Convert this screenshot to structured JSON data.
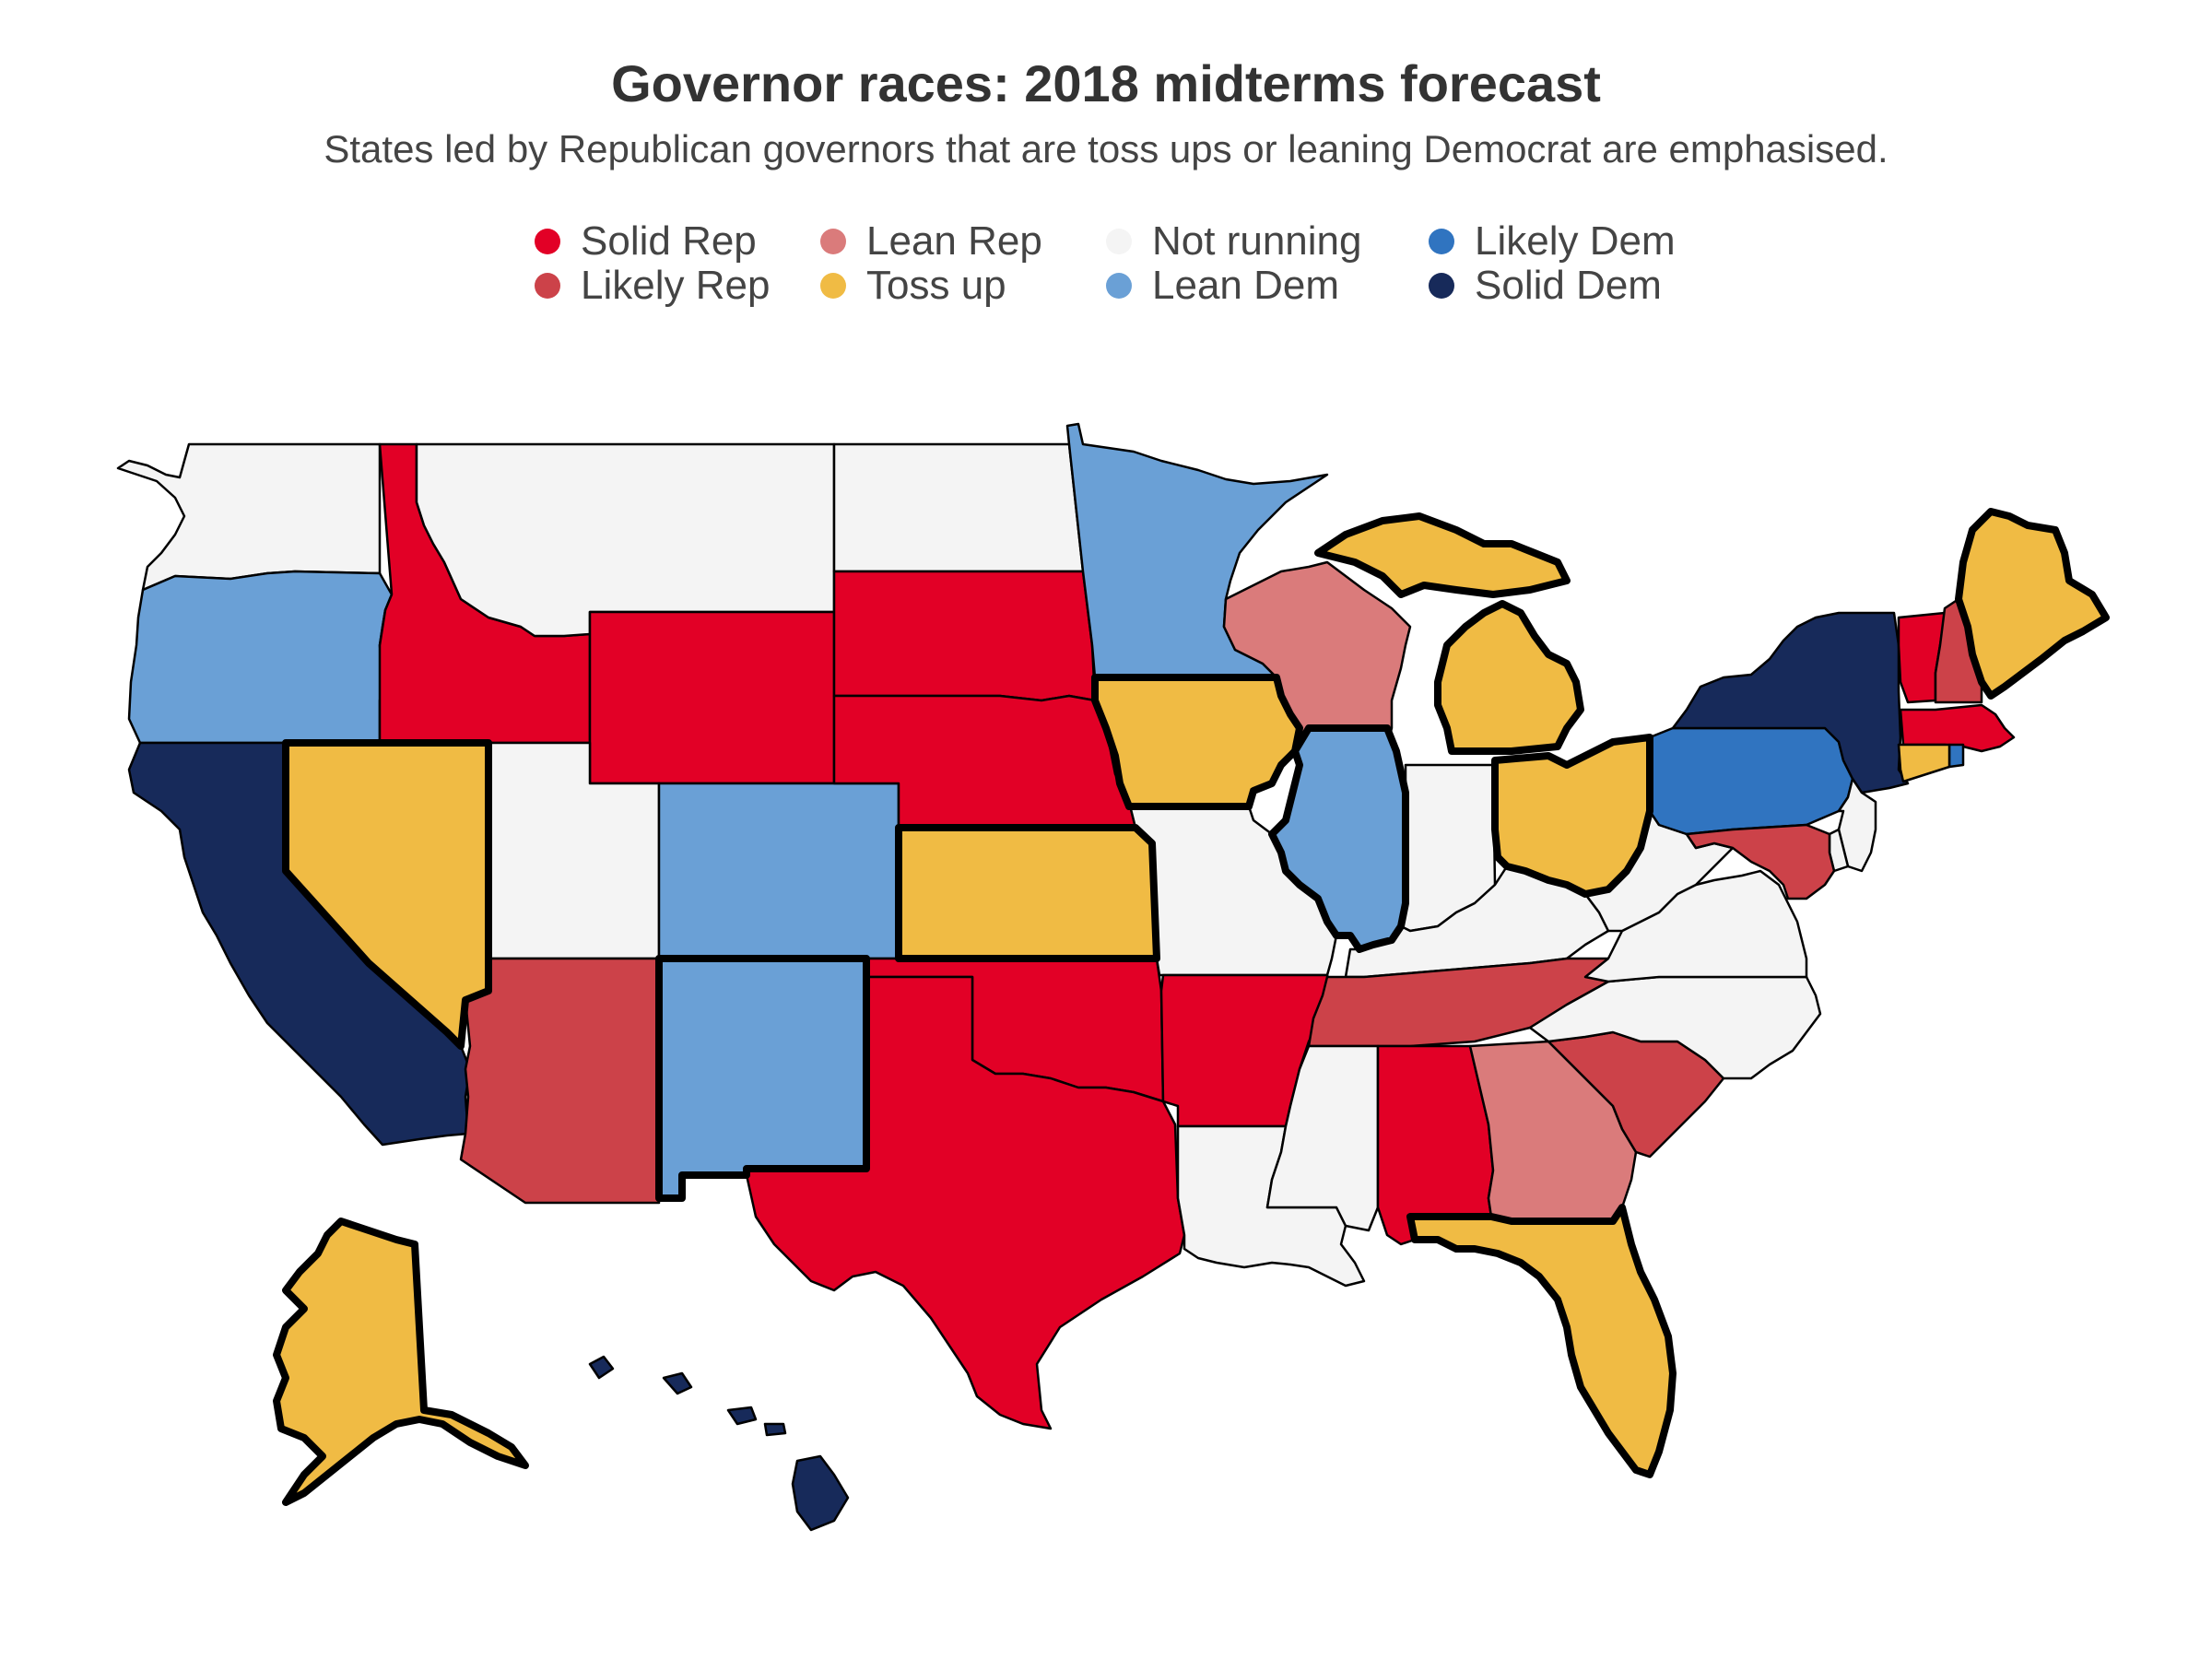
{
  "title": "Governor races: 2018 midterms forecast",
  "subtitle": "States led by Republican governors that are toss ups or leaning Democrat are emphasised.",
  "legend": [
    {
      "key": "solid_rep",
      "label": "Solid Rep",
      "color": "#e20026"
    },
    {
      "key": "likely_rep",
      "label": "Likely Rep",
      "color": "#cc4249"
    },
    {
      "key": "lean_rep",
      "label": "Lean Rep",
      "color": "#da7b7b"
    },
    {
      "key": "toss_up",
      "label": "Toss up",
      "color": "#f0bb44"
    },
    {
      "key": "not_running",
      "label": "Not running",
      "color": "#f4f4f4"
    },
    {
      "key": "lean_dem",
      "label": "Lean Dem",
      "color": "#6aa0d6"
    },
    {
      "key": "likely_dem",
      "label": "Likely Dem",
      "color": "#3074c0"
    },
    {
      "key": "solid_dem",
      "label": "Solid Dem",
      "color": "#172a5a"
    }
  ],
  "states": [
    {
      "code": "WA",
      "rating": "not_running"
    },
    {
      "code": "OR",
      "rating": "lean_dem"
    },
    {
      "code": "CA",
      "rating": "solid_dem"
    },
    {
      "code": "NV",
      "rating": "toss_up",
      "emphasised": true
    },
    {
      "code": "ID",
      "rating": "solid_rep"
    },
    {
      "code": "MT",
      "rating": "not_running"
    },
    {
      "code": "WY",
      "rating": "solid_rep"
    },
    {
      "code": "UT",
      "rating": "not_running"
    },
    {
      "code": "AZ",
      "rating": "likely_rep"
    },
    {
      "code": "CO",
      "rating": "lean_dem"
    },
    {
      "code": "NM",
      "rating": "lean_dem",
      "emphasised": true
    },
    {
      "code": "ND",
      "rating": "not_running"
    },
    {
      "code": "SD",
      "rating": "solid_rep"
    },
    {
      "code": "NE",
      "rating": "solid_rep"
    },
    {
      "code": "KS",
      "rating": "toss_up",
      "emphasised": true
    },
    {
      "code": "OK",
      "rating": "solid_rep"
    },
    {
      "code": "TX",
      "rating": "solid_rep"
    },
    {
      "code": "MN",
      "rating": "lean_dem"
    },
    {
      "code": "IA",
      "rating": "toss_up",
      "emphasised": true
    },
    {
      "code": "MO",
      "rating": "not_running"
    },
    {
      "code": "AR",
      "rating": "solid_rep"
    },
    {
      "code": "LA",
      "rating": "not_running"
    },
    {
      "code": "WI",
      "rating": "lean_rep"
    },
    {
      "code": "IL",
      "rating": "lean_dem",
      "emphasised": true
    },
    {
      "code": "MI",
      "rating": "toss_up",
      "emphasised": true
    },
    {
      "code": "IN",
      "rating": "not_running"
    },
    {
      "code": "OH",
      "rating": "toss_up",
      "emphasised": true
    },
    {
      "code": "KY",
      "rating": "not_running"
    },
    {
      "code": "TN",
      "rating": "likely_rep"
    },
    {
      "code": "MS",
      "rating": "not_running"
    },
    {
      "code": "AL",
      "rating": "solid_rep"
    },
    {
      "code": "GA",
      "rating": "lean_rep"
    },
    {
      "code": "FL",
      "rating": "toss_up",
      "emphasised": true
    },
    {
      "code": "SC",
      "rating": "likely_rep"
    },
    {
      "code": "NC",
      "rating": "not_running"
    },
    {
      "code": "VA",
      "rating": "not_running"
    },
    {
      "code": "WV",
      "rating": "not_running"
    },
    {
      "code": "PA",
      "rating": "likely_dem"
    },
    {
      "code": "NY",
      "rating": "solid_dem"
    },
    {
      "code": "VT",
      "rating": "solid_rep"
    },
    {
      "code": "NH",
      "rating": "likely_rep"
    },
    {
      "code": "ME",
      "rating": "toss_up",
      "emphasised": true
    },
    {
      "code": "MA",
      "rating": "solid_rep"
    },
    {
      "code": "RI",
      "rating": "likely_dem"
    },
    {
      "code": "CT",
      "rating": "toss_up"
    },
    {
      "code": "NJ",
      "rating": "not_running"
    },
    {
      "code": "DE",
      "rating": "not_running"
    },
    {
      "code": "MD",
      "rating": "likely_rep"
    },
    {
      "code": "AK",
      "rating": "toss_up",
      "emphasised": true
    },
    {
      "code": "HI",
      "rating": "solid_dem"
    }
  ]
}
